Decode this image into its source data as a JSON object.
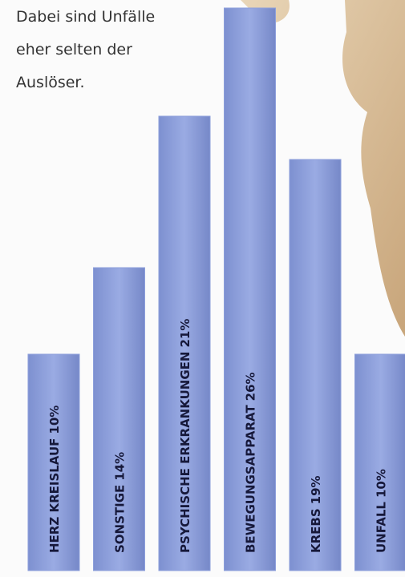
{
  "intro": [
    "Dabei sind Unfälle",
    "eher selten der",
    "Auslöser."
  ],
  "chart_data": {
    "type": "bar",
    "categories": [
      "HERZ KREISLAUF",
      "SONSTIGE",
      "PSYCHISCHE ERKRANKUNGEN",
      "BEWEGUNGSAPPARAT",
      "KREBS",
      "UNFALL"
    ],
    "values": [
      10,
      14,
      21,
      26,
      19,
      10
    ],
    "value_labels": [
      "10%",
      "14%",
      "21%",
      "26%",
      "19%",
      "10%"
    ],
    "color": "#8d9fdb"
  }
}
